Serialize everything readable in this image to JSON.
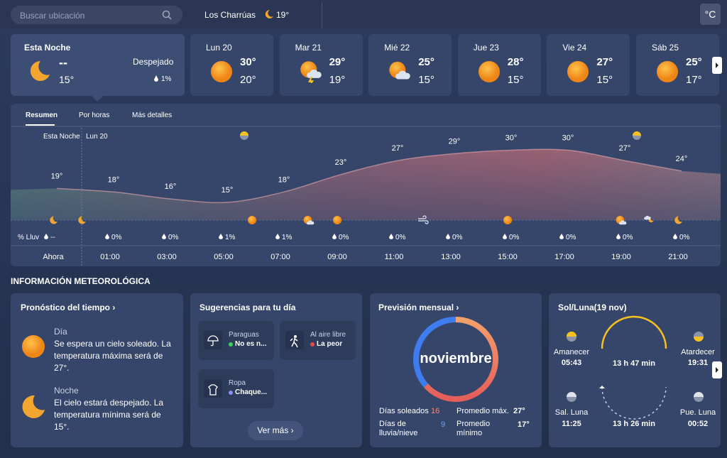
{
  "search": {
    "placeholder": "Buscar ubicación"
  },
  "location": {
    "name": "Los Charrúas",
    "temp": "19°"
  },
  "unit": "°C",
  "tonight": {
    "title": "Esta Noche",
    "temp": "--",
    "low": "15°",
    "condition": "Despejado",
    "rain": "1%"
  },
  "days": [
    {
      "day": "Lun 20",
      "high": "30°",
      "low": "20°"
    },
    {
      "day": "Mar 21",
      "high": "29°",
      "low": "19°"
    },
    {
      "day": "Mié 22",
      "high": "25°",
      "low": "15°"
    },
    {
      "day": "Jue 23",
      "high": "28°",
      "low": "15°"
    },
    {
      "day": "Vie 24",
      "high": "27°",
      "low": "15°"
    },
    {
      "day": "Sáb 25",
      "high": "25°",
      "low": "17°"
    }
  ],
  "tabs": [
    "Resumen",
    "Por horas",
    "Más detalles"
  ],
  "hourly": {
    "markers": [
      "Esta Noche",
      "Lun 20"
    ],
    "rain_label": "% Lluv",
    "times": [
      "Ahora",
      "01:00",
      "03:00",
      "05:00",
      "07:00",
      "09:00",
      "11:00",
      "13:00",
      "15:00",
      "17:00",
      "19:00",
      "21:00"
    ],
    "temps": [
      19,
      18,
      16,
      15,
      18,
      23,
      27,
      29,
      30,
      30,
      27,
      24
    ],
    "temp_labels": [
      "19°",
      "18°",
      "16°",
      "15°",
      "18°",
      "23°",
      "27°",
      "29°",
      "30°",
      "30°",
      "27°",
      "24°"
    ],
    "rain": [
      "--",
      "0%",
      "0%",
      "1%",
      "1%",
      "0%",
      "0%",
      "0%",
      "0%",
      "0%",
      "0%",
      "0%"
    ]
  },
  "section_title": "INFORMACIÓN METEOROLÓGICA",
  "forecast": {
    "title": "Pronóstico del tiempo",
    "day": {
      "label": "Día",
      "text": "Se espera un cielo soleado. La temperatura máxima será de 27°."
    },
    "night": {
      "label": "Noche",
      "text": "El cielo estará despejado. La temperatura mínima será de 15°."
    }
  },
  "suggestions": {
    "title": "Sugerencias para tu día",
    "items": [
      {
        "name": "Paraguas",
        "status": "No es n..."
      },
      {
        "name": "Al aire libre",
        "status": "La peor"
      },
      {
        "name": "Ropa",
        "status": "Chaque..."
      }
    ],
    "more": "Ver más"
  },
  "monthly": {
    "title": "Previsión mensual",
    "month": "noviembre",
    "stats": [
      {
        "label": "Días soleados",
        "value": "16"
      },
      {
        "label": "Días de lluvia/nieve",
        "value": "9"
      },
      {
        "label": "Promedio máx.",
        "value": "27°"
      },
      {
        "label": "Promedio mínimo",
        "value": "17°"
      }
    ]
  },
  "sunmoon": {
    "title": "Sol/Luna(19 nov)",
    "sunrise": {
      "label": "Amanecer",
      "time": "05:43"
    },
    "sunset": {
      "label": "Atardecer",
      "time": "19:31"
    },
    "day_length": "13 h 47 min",
    "moonrise": {
      "label": "Sal. Luna",
      "time": "11:25"
    },
    "moonset": {
      "label": "Pue. Luna",
      "time": "00:52"
    },
    "moon_length": "13 h 26 min"
  }
}
